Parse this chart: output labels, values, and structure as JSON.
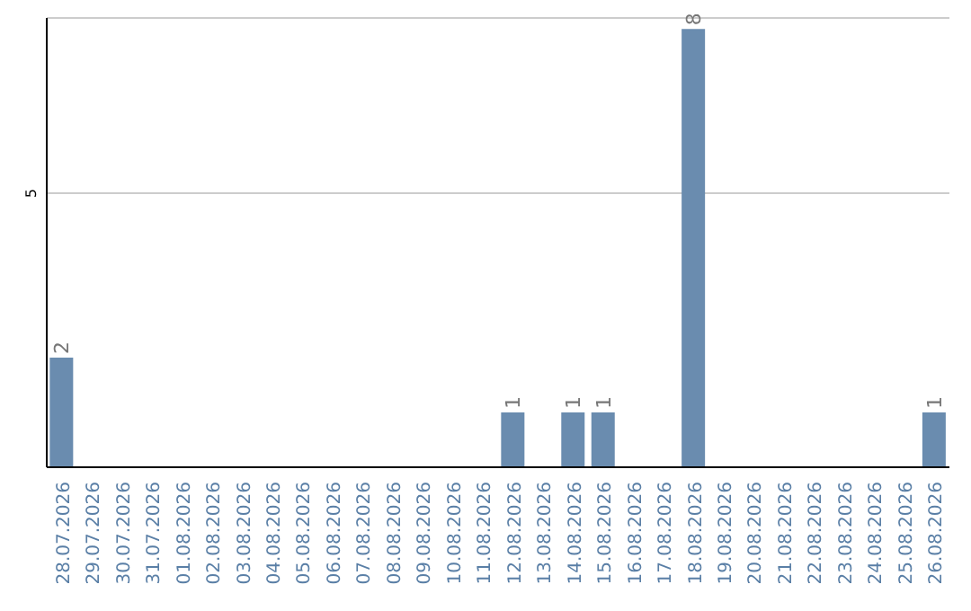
{
  "chart_data": {
    "type": "bar",
    "categories": [
      "28.07.2026",
      "29.07.2026",
      "30.07.2026",
      "31.07.2026",
      "01.08.2026",
      "02.08.2026",
      "03.08.2026",
      "04.08.2026",
      "05.08.2026",
      "06.08.2026",
      "07.08.2026",
      "08.08.2026",
      "09.08.2026",
      "10.08.2026",
      "11.08.2026",
      "12.08.2026",
      "13.08.2026",
      "14.08.2026",
      "15.08.2026",
      "16.08.2026",
      "17.08.2026",
      "18.08.2026",
      "19.08.2026",
      "20.08.2026",
      "21.08.2026",
      "22.08.2026",
      "23.08.2026",
      "24.08.2026",
      "25.08.2026",
      "26.08.2026"
    ],
    "values": [
      2,
      0,
      0,
      0,
      0,
      0,
      0,
      0,
      0,
      0,
      0,
      0,
      0,
      0,
      0,
      1,
      0,
      1,
      1,
      0,
      0,
      8,
      0,
      0,
      0,
      0,
      0,
      0,
      0,
      1
    ],
    "value_labels": [
      "2",
      null,
      null,
      null,
      null,
      null,
      null,
      null,
      null,
      null,
      null,
      null,
      null,
      null,
      null,
      "1",
      null,
      "1",
      "1",
      null,
      null,
      "8",
      null,
      null,
      null,
      null,
      null,
      null,
      null,
      "1"
    ],
    "color": "#6a8caf",
    "ylim": [
      0,
      8.2
    ],
    "yticks": [
      5
    ],
    "grid": "y"
  }
}
